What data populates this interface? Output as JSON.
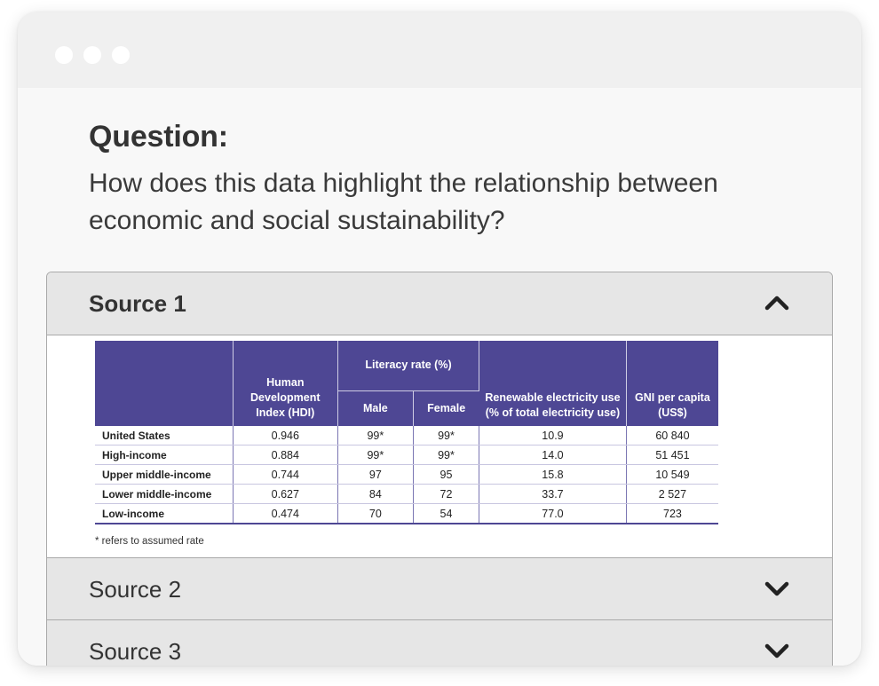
{
  "question": {
    "heading": "Question:",
    "text": "How does this data highlight the relationship between economic and social sustainability?"
  },
  "sources": [
    {
      "label": "Source 1",
      "expanded": true
    },
    {
      "label": "Source 2",
      "expanded": false
    },
    {
      "label": "Source 3",
      "expanded": false
    }
  ],
  "table": {
    "headers": {
      "hdi": "Human Development Index (HDI)",
      "literacy": "Literacy rate (%)",
      "male": "Male",
      "female": "Female",
      "renewable": "Renewable electricity use (% of total electricity use)",
      "gni": "GNI per capita (US$)"
    },
    "rows": [
      {
        "name": "United States",
        "hdi": "0.946",
        "male": "99*",
        "female": "99*",
        "renewable": "10.9",
        "gni": "60 840"
      },
      {
        "name": "High-income",
        "hdi": "0.884",
        "male": "99*",
        "female": "99*",
        "renewable": "14.0",
        "gni": "51 451"
      },
      {
        "name": "Upper middle-income",
        "hdi": "0.744",
        "male": "97",
        "female": "95",
        "renewable": "15.8",
        "gni": "10 549"
      },
      {
        "name": "Lower middle-income",
        "hdi": "0.627",
        "male": "84",
        "female": "72",
        "renewable": "33.7",
        "gni": "2 527"
      },
      {
        "name": "Low-income",
        "hdi": "0.474",
        "male": "70",
        "female": "54",
        "renewable": "77.0",
        "gni": "723"
      }
    ],
    "footnote": "* refers to assumed rate"
  },
  "colors": {
    "table_header": "#4e4794",
    "accordion_header": "#e6e6e6",
    "window_bg": "#f8f8f8"
  },
  "icons": {
    "window_controls": "dot-icon",
    "expanded": "chevron-up-icon",
    "collapsed": "chevron-down-icon"
  }
}
